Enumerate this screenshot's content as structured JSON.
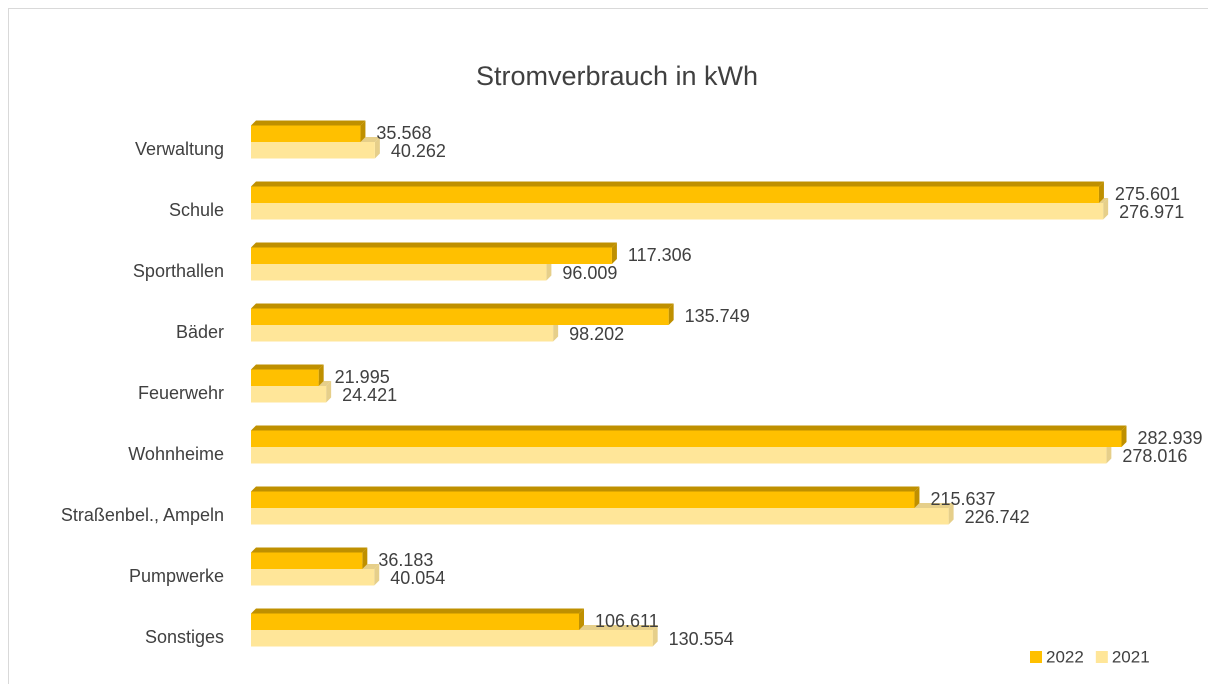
{
  "chart_data": {
    "type": "bar",
    "orientation": "horizontal",
    "title": "Stromverbrauch in kWh",
    "categories": [
      "Verwaltung",
      "Schule",
      "Sporthallen",
      "Bäder",
      "Feuerwehr",
      "Wohnheime",
      "Straßenbel., Ampeln",
      "Pumpwerke",
      "Sonstiges"
    ],
    "series": [
      {
        "name": "2022",
        "color": "#ffc000",
        "side_color": "#bf9000",
        "values": [
          35568,
          275601,
          117306,
          135749,
          21995,
          282939,
          215637,
          36183,
          106611
        ],
        "value_labels": [
          "35.568",
          "275.601",
          "117.306",
          "135.749",
          "21.995",
          "282.939",
          "215.637",
          "36.183",
          "106.611"
        ]
      },
      {
        "name": "2021",
        "color": "#ffe699",
        "side_color": "#e6cf8a",
        "values": [
          40262,
          276971,
          96009,
          98202,
          24421,
          278016,
          226742,
          40054,
          130554
        ],
        "value_labels": [
          "40.262",
          "276.971",
          "96.009",
          "98.202",
          "24.421",
          "278.016",
          "226.742",
          "40.054",
          "130.554"
        ]
      }
    ],
    "xlim": [
      0,
      300000
    ],
    "legend": "bottom-right"
  }
}
